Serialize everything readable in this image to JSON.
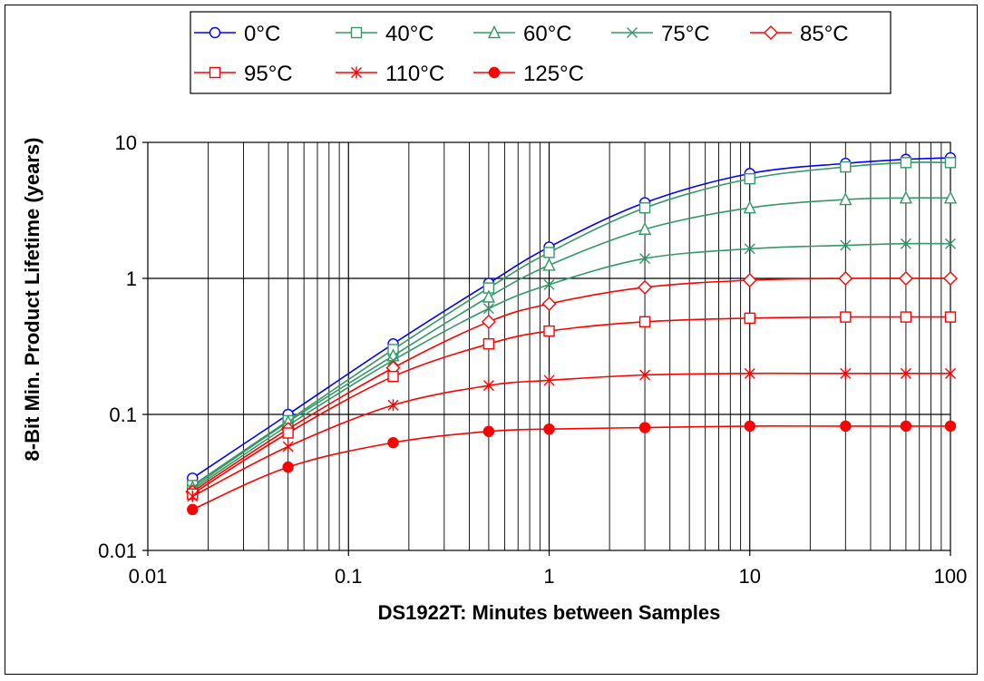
{
  "chart_data": {
    "type": "line",
    "title": "",
    "xlabel": "DS1922T: Minutes between Samples",
    "ylabel": "8-Bit Min. Product Lifetime (years)",
    "x_scale": "log",
    "y_scale": "log",
    "xlim": [
      0.01,
      100
    ],
    "ylim": [
      0.01,
      10
    ],
    "x_ticks": [
      "0.01",
      "0.1",
      "1",
      "10",
      "100"
    ],
    "y_ticks": [
      "0.01",
      "0.1",
      "1",
      "10"
    ],
    "grid": "vertical minor and major lines, horizontal major lines",
    "legend_position": "top",
    "x": [
      0.0167,
      0.05,
      0.167,
      0.5,
      1,
      3,
      10,
      30,
      60,
      100
    ],
    "series": [
      {
        "name": "0°C",
        "color": "#0000ff",
        "marker": "circle-open",
        "values": [
          0.034,
          0.1,
          0.33,
          0.92,
          1.7,
          3.6,
          5.9,
          7.0,
          7.5,
          7.7
        ]
      },
      {
        "name": "40°C",
        "color": "#339966",
        "marker": "square-open",
        "values": [
          0.03,
          0.09,
          0.3,
          0.85,
          1.55,
          3.3,
          5.4,
          6.6,
          7.1,
          7.1
        ]
      },
      {
        "name": "60°C",
        "color": "#339966",
        "marker": "triangle-open",
        "values": [
          0.029,
          0.088,
          0.27,
          0.73,
          1.25,
          2.3,
          3.3,
          3.8,
          3.9,
          3.9
        ]
      },
      {
        "name": "75°C",
        "color": "#339966",
        "marker": "x",
        "values": [
          0.028,
          0.083,
          0.25,
          0.6,
          0.9,
          1.4,
          1.65,
          1.75,
          1.8,
          1.8
        ]
      },
      {
        "name": "85°C",
        "color": "#ff0000",
        "marker": "diamond-open",
        "values": [
          0.027,
          0.078,
          0.22,
          0.48,
          0.65,
          0.86,
          0.97,
          1.0,
          1.0,
          1.0
        ]
      },
      {
        "name": "95°C",
        "color": "#ff0000",
        "marker": "square-open",
        "values": [
          0.026,
          0.073,
          0.19,
          0.33,
          0.41,
          0.48,
          0.51,
          0.52,
          0.52,
          0.52
        ]
      },
      {
        "name": "110°C",
        "color": "#ff0000",
        "marker": "asterisk",
        "values": [
          0.025,
          0.058,
          0.117,
          0.163,
          0.178,
          0.195,
          0.2,
          0.2,
          0.2,
          0.2
        ]
      },
      {
        "name": "125°C",
        "color": "#ff0000",
        "marker": "circle-filled",
        "values": [
          0.02,
          0.041,
          0.062,
          0.075,
          0.078,
          0.08,
          0.082,
          0.082,
          0.082,
          0.082
        ]
      }
    ]
  }
}
